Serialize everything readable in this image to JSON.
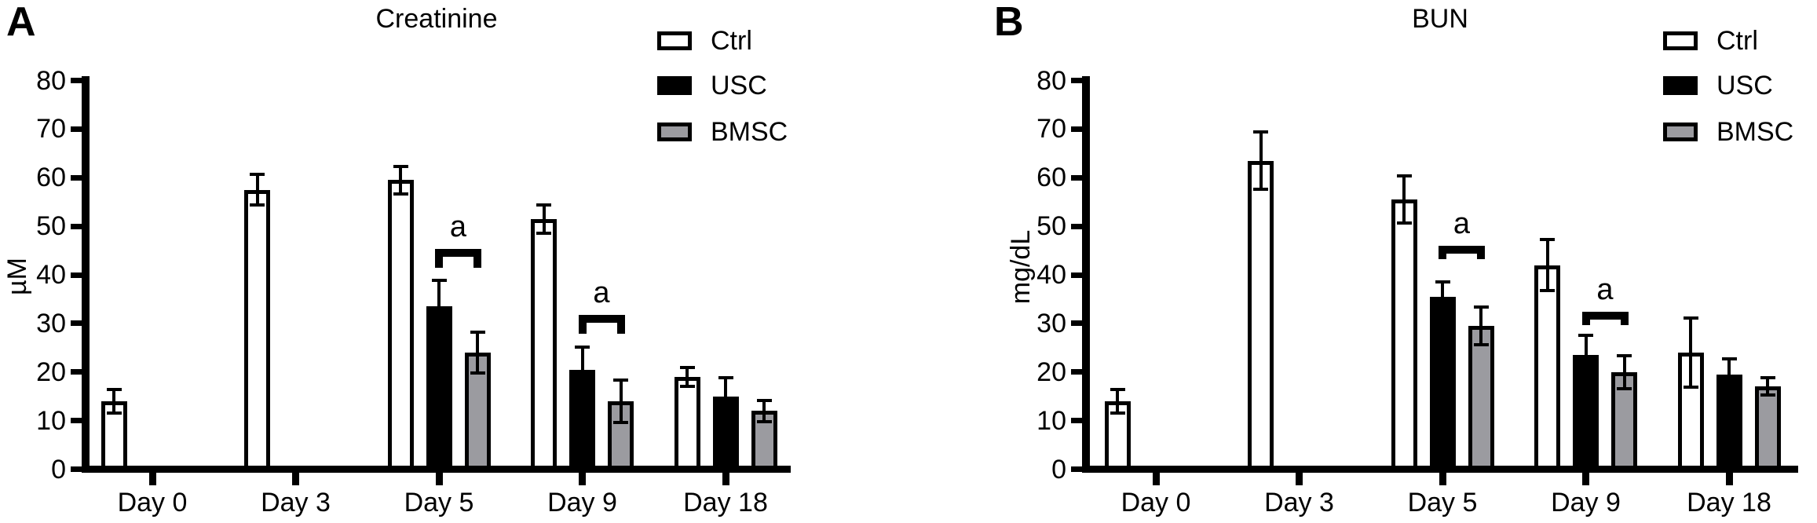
{
  "figure": {
    "background": "#ffffff",
    "bar_outline_color": "#000000"
  },
  "chart_data": [
    {
      "type": "bar",
      "panel_label": "A",
      "title": "Creatinine",
      "ylabel": "µM",
      "ylim": [
        0,
        80
      ],
      "ytick_step": 10,
      "grid": false,
      "legend_position": "top-right",
      "categories": [
        "Day 0",
        "Day 3",
        "Day 5",
        "Day 9",
        "Day 18"
      ],
      "series": [
        {
          "name": "Ctrl",
          "fill": "#ffffff",
          "stroke": "#000000",
          "values": [
            14,
            57.5,
            59.5,
            51.5,
            19
          ],
          "errors": [
            2.7,
            3.5,
            3.2,
            3.2,
            2.2
          ]
        },
        {
          "name": "USC",
          "fill": "#000000",
          "stroke": "#000000",
          "values": [
            null,
            null,
            33.5,
            20.5,
            15
          ],
          "errors": [
            null,
            null,
            5.7,
            4.9,
            4.1
          ]
        },
        {
          "name": "BMSC",
          "fill": "#9b9ba0",
          "stroke": "#000000",
          "values": [
            null,
            null,
            24,
            14,
            12
          ],
          "errors": [
            null,
            null,
            4.6,
            4.7,
            2.5
          ]
        }
      ],
      "significance": [
        {
          "label": "a",
          "category": "Day 5",
          "between": [
            "USC",
            "BMSC"
          ],
          "y": 45.3
        },
        {
          "label": "a",
          "category": "Day 9",
          "between": [
            "USC",
            "BMSC"
          ],
          "y": 31.8
        }
      ]
    },
    {
      "type": "bar",
      "panel_label": "B",
      "title": "BUN",
      "ylabel": "mg/dL",
      "ylim": [
        0,
        80
      ],
      "ytick_step": 10,
      "grid": false,
      "legend_position": "top-right",
      "categories": [
        "Day 0",
        "Day 3",
        "Day 5",
        "Day 9",
        "Day 18"
      ],
      "series": [
        {
          "name": "Ctrl",
          "fill": "#ffffff",
          "stroke": "#000000",
          "values": [
            14,
            63.5,
            55.5,
            42,
            24
          ],
          "errors": [
            2.7,
            6.2,
            5.2,
            5.6,
            7.5
          ]
        },
        {
          "name": "USC",
          "fill": "#000000",
          "stroke": "#000000",
          "values": [
            null,
            null,
            35.5,
            23.5,
            19.5
          ],
          "errors": [
            null,
            null,
            3.4,
            4.4,
            3.6
          ]
        },
        {
          "name": "BMSC",
          "fill": "#9b9ba0",
          "stroke": "#000000",
          "values": [
            null,
            null,
            29.5,
            20,
            17
          ],
          "errors": [
            null,
            null,
            4.2,
            3.7,
            2.1
          ]
        }
      ],
      "significance": [
        {
          "label": "a",
          "category": "Day 5",
          "between": [
            "USC",
            "BMSC"
          ],
          "y": 46
        },
        {
          "label": "a",
          "category": "Day 9",
          "between": [
            "USC",
            "BMSC"
          ],
          "y": 32.4
        }
      ]
    }
  ]
}
